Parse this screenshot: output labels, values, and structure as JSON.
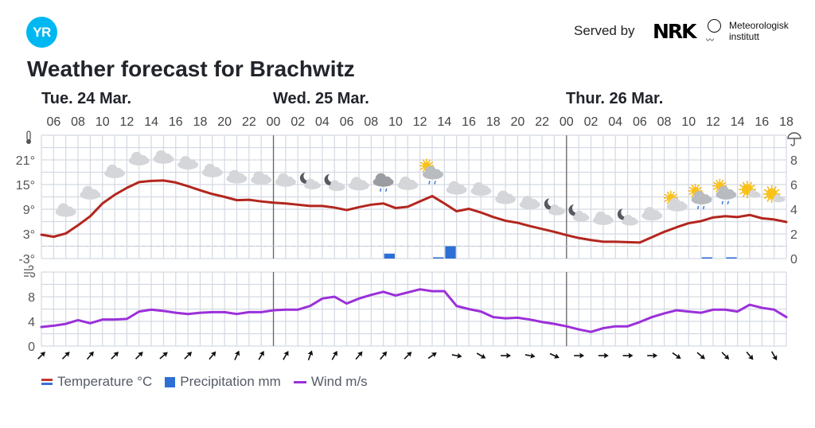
{
  "header": {
    "logo": "YR",
    "served_by": "Served by",
    "nrk": "NRK",
    "met_line1": "Meteorologisk",
    "met_line2": "institutt"
  },
  "title": "Weather forecast for Brachwitz",
  "days": [
    "Tue. 24 Mar.",
    "Wed. 25 Mar.",
    "Thur. 26 Mar."
  ],
  "legend": {
    "temperature": "Temperature °C",
    "precipitation": "Precipitation mm",
    "wind": "Wind m/s"
  },
  "colors": {
    "logo": "#00b8f1",
    "temperature": "#b3261e",
    "precipitation": "#2e6fd6",
    "wind": "#9b30d9",
    "grid": "#d3d9e2",
    "day_divider": "#666666"
  },
  "chart_data": {
    "type": "line",
    "title": "Weather forecast for Brachwitz",
    "x_start": "Tue 05:00",
    "x_step": "1 hour",
    "hour_labels": [
      "06",
      "08",
      "10",
      "12",
      "14",
      "16",
      "18",
      "20",
      "22",
      "00",
      "02",
      "04",
      "06",
      "08",
      "10",
      "12",
      "14",
      "16",
      "18",
      "20",
      "22",
      "00",
      "02",
      "04",
      "06",
      "08",
      "10",
      "12",
      "14",
      "16",
      "18"
    ],
    "temperature": {
      "unit": "°C",
      "ylim": [
        -3,
        27
      ],
      "ticks": [
        "21°",
        "15°",
        "9°",
        "3°",
        "-3°"
      ],
      "tick_values": [
        21,
        15,
        9,
        3,
        -3
      ],
      "values": [
        2.8,
        2.3,
        3.1,
        5.1,
        7.3,
        10.4,
        12.5,
        14.2,
        15.6,
        15.9,
        16.0,
        15.5,
        14.6,
        13.6,
        12.7,
        12.0,
        11.2,
        11.3,
        10.9,
        10.6,
        10.4,
        10.1,
        9.8,
        9.8,
        9.4,
        8.8,
        9.5,
        10.1,
        10.4,
        9.3,
        9.6,
        10.9,
        12.2,
        10.4,
        8.5,
        9.1,
        8.2,
        7.1,
        6.2,
        5.7,
        4.9,
        4.2,
        3.5,
        2.7,
        2.0,
        1.5,
        1.1,
        1.1,
        1.0,
        0.9,
        2.2,
        3.5,
        4.6,
        5.6,
        6.1,
        7.0,
        7.3,
        7.1,
        7.6,
        6.8,
        6.5,
        5.9
      ]
    },
    "precipitation": {
      "unit": "mm",
      "ylim": [
        0,
        10
      ],
      "ticks": [
        "8",
        "6",
        "4",
        "2",
        "0"
      ],
      "tick_values": [
        8,
        6,
        4,
        2,
        0
      ],
      "bars": [
        {
          "time": "Wed 09",
          "hour_index": 28,
          "mm": 0.4
        },
        {
          "time": "Wed 13",
          "hour_index": 32,
          "mm": 0.1
        },
        {
          "time": "Wed 14",
          "hour_index": 33,
          "mm": 1.0
        },
        {
          "time": "Thu 11",
          "hour_index": 54,
          "mm": 0.1
        },
        {
          "time": "Thu 13",
          "hour_index": 56,
          "mm": 0.1
        }
      ]
    },
    "wind": {
      "unit": "m/s",
      "ylim": [
        0,
        12
      ],
      "ticks": [
        "8",
        "4",
        "0"
      ],
      "tick_values": [
        8,
        4,
        0
      ],
      "values": [
        3.1,
        3.3,
        3.6,
        4.2,
        3.7,
        4.3,
        4.3,
        4.4,
        5.6,
        5.9,
        5.7,
        5.4,
        5.2,
        5.4,
        5.5,
        5.5,
        5.2,
        5.5,
        5.5,
        5.8,
        5.9,
        5.9,
        6.5,
        7.7,
        8.0,
        6.9,
        7.7,
        8.3,
        8.8,
        8.2,
        8.7,
        9.2,
        8.9,
        8.9,
        6.5,
        6.0,
        5.6,
        4.7,
        4.5,
        4.6,
        4.3,
        3.9,
        3.6,
        3.2,
        2.7,
        2.3,
        2.9,
        3.2,
        3.2,
        3.9,
        4.7,
        5.3,
        5.8,
        5.6,
        5.4,
        5.9,
        5.9,
        5.6,
        6.7,
        6.2,
        5.9,
        4.7
      ],
      "direction_every_2h_from_index_0_bearing_deg": [
        45,
        45,
        40,
        45,
        45,
        50,
        45,
        40,
        25,
        30,
        30,
        20,
        30,
        40,
        40,
        45,
        55,
        100,
        120,
        90,
        100,
        115,
        90,
        90,
        90,
        90,
        125,
        130,
        135,
        140,
        150
      ]
    },
    "symbols_every_2h_from_index_2": [
      "cloudy",
      "cloudy",
      "cloudy",
      "cloudy",
      "cloudy",
      "cloudy",
      "cloudy",
      "cloudy",
      "cloudy",
      "cloudy",
      "partlycloudy_night",
      "partlycloudy_night",
      "cloudy",
      "rain",
      "cloudy",
      "partlycloudy_day_rain",
      "cloudy",
      "cloudy",
      "cloudy",
      "cloudy",
      "partlycloudy_night",
      "partlycloudy_night",
      "cloudy",
      "partlycloudy_night",
      "cloudy",
      "partlycloudy_day",
      "partlycloudy_day_rain",
      "partlycloudy_day_rain",
      "fair_day",
      "fair_day"
    ],
    "day_boundaries_hour_index": [
      19,
      43
    ],
    "legend_position": "bottom-left",
    "grid": true
  }
}
